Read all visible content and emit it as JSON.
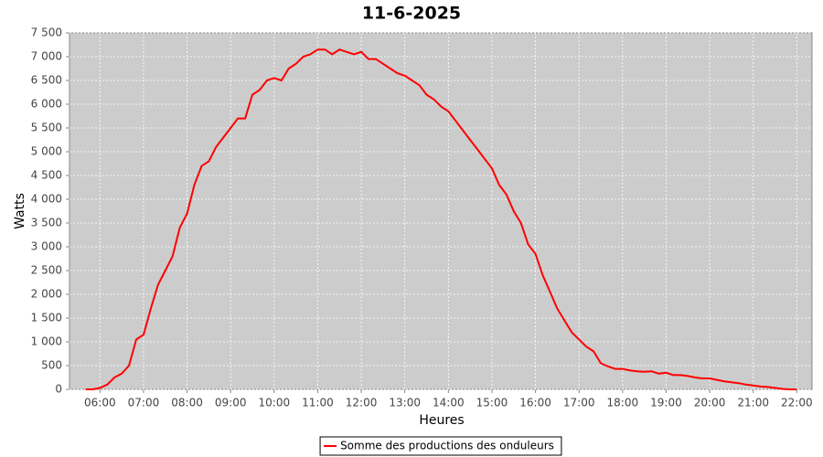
{
  "chart_data": {
    "type": "line",
    "title": "11-6-2025",
    "x_label": "Heures",
    "y_label": "Watts",
    "x": [
      "05:40",
      "05:50",
      "06:00",
      "06:10",
      "06:20",
      "06:30",
      "06:40",
      "06:50",
      "07:00",
      "07:10",
      "07:20",
      "07:30",
      "07:40",
      "07:50",
      "08:00",
      "08:10",
      "08:20",
      "08:30",
      "08:40",
      "08:50",
      "09:00",
      "09:10",
      "09:20",
      "09:30",
      "09:40",
      "09:50",
      "10:00",
      "10:10",
      "10:20",
      "10:30",
      "10:40",
      "10:50",
      "11:00",
      "11:10",
      "11:20",
      "11:30",
      "11:40",
      "11:50",
      "12:00",
      "12:10",
      "12:20",
      "12:30",
      "12:40",
      "12:50",
      "13:00",
      "13:10",
      "13:20",
      "13:30",
      "13:40",
      "13:50",
      "14:00",
      "14:10",
      "14:20",
      "14:30",
      "14:40",
      "14:50",
      "15:00",
      "15:10",
      "15:20",
      "15:30",
      "15:40",
      "15:50",
      "16:00",
      "16:10",
      "16:20",
      "16:30",
      "16:40",
      "16:50",
      "17:00",
      "17:10",
      "17:20",
      "17:30",
      "17:40",
      "17:50",
      "18:00",
      "18:10",
      "18:20",
      "18:30",
      "18:40",
      "18:50",
      "19:00",
      "19:10",
      "19:20",
      "19:30",
      "19:40",
      "19:50",
      "20:00",
      "20:10",
      "20:20",
      "20:30",
      "20:40",
      "20:50",
      "21:00",
      "21:10",
      "21:20",
      "21:30",
      "21:40",
      "21:50",
      "22:00"
    ],
    "series": [
      {
        "name": "Somme des productions des onduleurs",
        "color": "#ff0000",
        "values": [
          0,
          0,
          30,
          100,
          250,
          330,
          500,
          1050,
          1150,
          1700,
          2200,
          2500,
          2800,
          3400,
          3700,
          4300,
          4700,
          4800,
          5100,
          5300,
          5500,
          5700,
          5700,
          6200,
          6300,
          6500,
          6550,
          6500,
          6750,
          6850,
          7000,
          7050,
          7150,
          7150,
          7050,
          7150,
          7100,
          7050,
          7100,
          6950,
          6950,
          6850,
          6750,
          6650,
          6600,
          6500,
          6400,
          6200,
          6100,
          5950,
          5850,
          5650,
          5450,
          5250,
          5050,
          4850,
          4650,
          4300,
          4100,
          3750,
          3500,
          3050,
          2850,
          2400,
          2050,
          1700,
          1450,
          1200,
          1050,
          900,
          800,
          550,
          480,
          430,
          430,
          400,
          380,
          370,
          380,
          330,
          350,
          300,
          300,
          280,
          250,
          230,
          230,
          200,
          170,
          150,
          130,
          100,
          80,
          60,
          50,
          30,
          10,
          0,
          0
        ]
      }
    ],
    "xlim": [
      "05:18",
      "22:21"
    ],
    "xticks": [
      "06:00",
      "07:00",
      "08:00",
      "09:00",
      "10:00",
      "11:00",
      "12:00",
      "13:00",
      "14:00",
      "15:00",
      "16:00",
      "17:00",
      "18:00",
      "19:00",
      "20:00",
      "21:00",
      "22:00"
    ],
    "ylim": [
      0,
      7500
    ],
    "yticks": [
      0,
      500,
      {
        "value": 1000,
        "label": "1 000"
      },
      {
        "value": 1500,
        "label": "1 500"
      },
      {
        "value": 2000,
        "label": "2 000"
      },
      {
        "value": 2500,
        "label": "2 500"
      },
      {
        "value": 3000,
        "label": "3 000"
      },
      {
        "value": 3500,
        "label": "3 500"
      },
      {
        "value": 4000,
        "label": "4 000"
      },
      {
        "value": 4500,
        "label": "4 500"
      },
      {
        "value": 5000,
        "label": "5 000"
      },
      {
        "value": 5500,
        "label": "5 500"
      },
      {
        "value": 6000,
        "label": "6 000"
      },
      {
        "value": 6500,
        "label": "6 500"
      },
      {
        "value": 7000,
        "label": "7 000"
      },
      {
        "value": 7500,
        "label": "7 500"
      }
    ],
    "grid": true,
    "legend": "bottom"
  }
}
